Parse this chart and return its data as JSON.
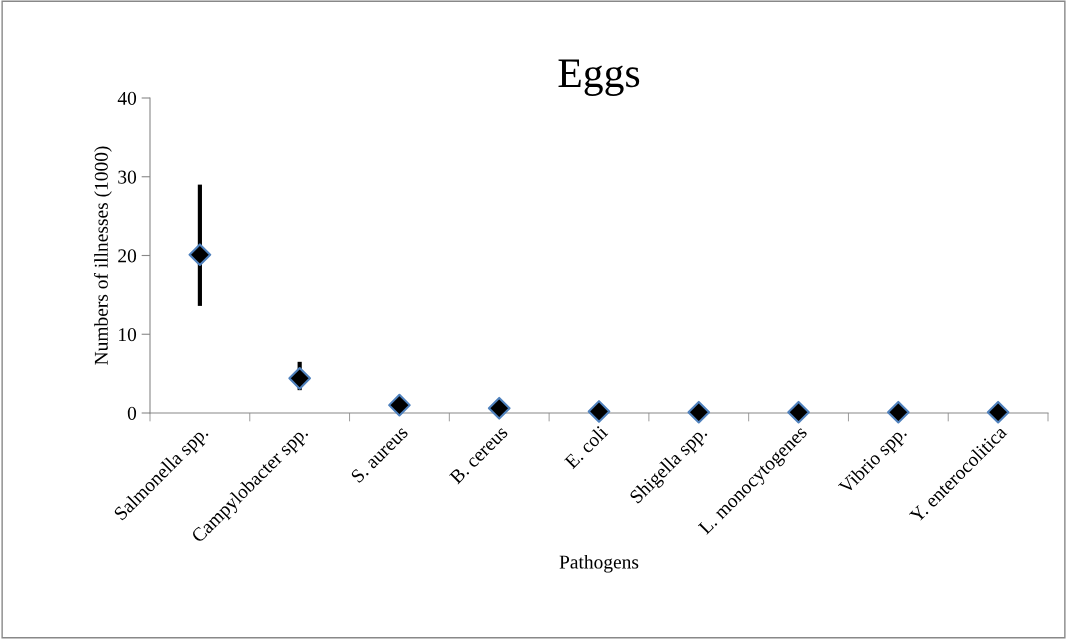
{
  "chart_data": {
    "type": "scatter",
    "title": "Eggs",
    "xlabel": "Pathogens",
    "ylabel": "Numbers of illnesses (1000)",
    "categories": [
      "Salmonella spp.",
      "Campylobacter spp.",
      "S. aureus",
      "B. cereus",
      "E. coli",
      "Shigella spp.",
      "L. monocytogenes",
      "Vibrio spp.",
      "Y. enterocolitica"
    ],
    "series": [
      {
        "color": "#000000",
        "values": [
          20.1,
          4.4,
          1.0,
          0.6,
          0.2,
          0.1,
          0.1,
          0.1,
          0.1
        ],
        "errors": [
          [
            13.6,
            29.0
          ],
          [
            2.9,
            6.5
          ],
          null,
          null,
          null,
          null,
          null,
          null,
          null
        ]
      }
    ],
    "ylim": [
      0,
      40
    ],
    "yticks": [
      0,
      10,
      20,
      30,
      40
    ],
    "grid": false,
    "legend": false,
    "marker": "diamond"
  }
}
